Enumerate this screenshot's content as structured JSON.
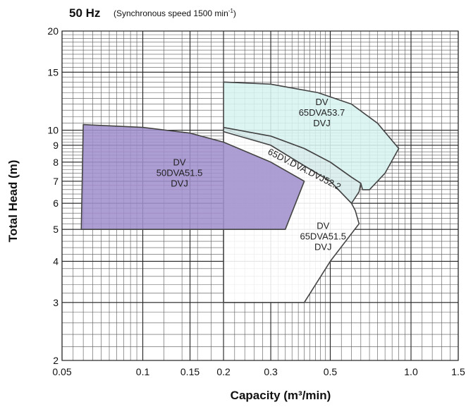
{
  "chart_data": {
    "type": "area",
    "title": "50 Hz",
    "subtitle": "(Synchronous speed  1500 min",
    "subtitle_sup": "-1",
    "subtitle_end": ")",
    "xlabel": "Capacity (m³/min)",
    "ylabel": "Total Head (m)",
    "x_scale": "log",
    "y_scale": "log",
    "xlim": [
      0.05,
      1.5
    ],
    "ylim": [
      2,
      20
    ],
    "grid": true,
    "x_ticks": [
      {
        "value": 0.05,
        "label": "0.05"
      },
      {
        "value": 0.1,
        "label": "0.1"
      },
      {
        "value": 0.15,
        "label": "0.15"
      },
      {
        "value": 0.2,
        "label": "0.2"
      },
      {
        "value": 0.3,
        "label": "0.3"
      },
      {
        "value": 0.5,
        "label": "0.5"
      },
      {
        "value": 1.0,
        "label": "1.0"
      },
      {
        "value": 1.5,
        "label": "1.5"
      }
    ],
    "y_ticks": [
      {
        "value": 2,
        "label": "2"
      },
      {
        "value": 3,
        "label": "3"
      },
      {
        "value": 4,
        "label": "4"
      },
      {
        "value": 5,
        "label": "5"
      },
      {
        "value": 6,
        "label": "6"
      },
      {
        "value": 7,
        "label": "7"
      },
      {
        "value": 8,
        "label": "8"
      },
      {
        "value": 9,
        "label": "9"
      },
      {
        "value": 10,
        "label": "10"
      },
      {
        "value": 15,
        "label": "15"
      },
      {
        "value": 20,
        "label": "20"
      }
    ],
    "series": [
      {
        "name": "DV 65DVA51.5 DVJ",
        "label_lines": [
          "DV",
          "65DVA51.5",
          "DVJ"
        ],
        "label_at": [
          0.47,
          4.75
        ],
        "label_angle": 0,
        "fill": "#ffffff",
        "stroke": "#444444",
        "points": [
          [
            0.2,
            10.1
          ],
          [
            0.2,
            3.0
          ],
          [
            0.4,
            3.0
          ],
          [
            0.5,
            4.0
          ],
          [
            0.64,
            5.2
          ],
          [
            0.62,
            5.7
          ],
          [
            0.6,
            6.0
          ],
          [
            0.5,
            7.0
          ],
          [
            0.4,
            7.8
          ],
          [
            0.3,
            9.0
          ],
          [
            0.2,
            10.1
          ]
        ]
      },
      {
        "name": "DV 50DVA51.5 DVJ",
        "label_lines": [
          "DV",
          "50DVA51.5",
          "DVJ"
        ],
        "label_at": [
          0.137,
          7.4
        ],
        "label_angle": 0,
        "fill": "#a08fcc",
        "stroke": "#444444",
        "points": [
          [
            0.06,
            10.4
          ],
          [
            0.1,
            10.2
          ],
          [
            0.15,
            9.8
          ],
          [
            0.2,
            9.2
          ],
          [
            0.3,
            8.0
          ],
          [
            0.4,
            7.0
          ],
          [
            0.34,
            5.0
          ],
          [
            0.059,
            5.0
          ]
        ]
      },
      {
        "name": "65DV.DVA.DVJ52.2",
        "label_lines": [
          "65DV.DVA.DVJ52.2"
        ],
        "label_at": [
          0.4,
          7.6
        ],
        "label_angle": 27,
        "fill": "#d7ecec",
        "stroke": "#444444",
        "points": [
          [
            0.2,
            10.2
          ],
          [
            0.3,
            9.6
          ],
          [
            0.4,
            8.8
          ],
          [
            0.5,
            8.0
          ],
          [
            0.6,
            7.2
          ],
          [
            0.65,
            6.9
          ],
          [
            0.64,
            6.5
          ],
          [
            0.6,
            6.0
          ],
          [
            0.5,
            7.0
          ],
          [
            0.4,
            7.8
          ],
          [
            0.3,
            9.0
          ],
          [
            0.2,
            9.9
          ]
        ]
      },
      {
        "name": "DV 65DVA53.7 DVJ",
        "label_lines": [
          "DV",
          "65DVA53.7",
          "DVJ"
        ],
        "label_at": [
          0.465,
          11.3
        ],
        "label_angle": 0,
        "fill": "#d7f2f0",
        "stroke": "#444444",
        "points": [
          [
            0.2,
            14.0
          ],
          [
            0.3,
            13.8
          ],
          [
            0.45,
            13.0
          ],
          [
            0.6,
            12.0
          ],
          [
            0.75,
            10.5
          ],
          [
            0.9,
            8.8
          ],
          [
            0.8,
            7.4
          ],
          [
            0.7,
            6.6
          ],
          [
            0.66,
            6.6
          ],
          [
            0.65,
            6.9
          ],
          [
            0.6,
            7.2
          ],
          [
            0.5,
            8.0
          ],
          [
            0.4,
            8.8
          ],
          [
            0.3,
            9.6
          ],
          [
            0.2,
            10.2
          ]
        ]
      }
    ]
  }
}
